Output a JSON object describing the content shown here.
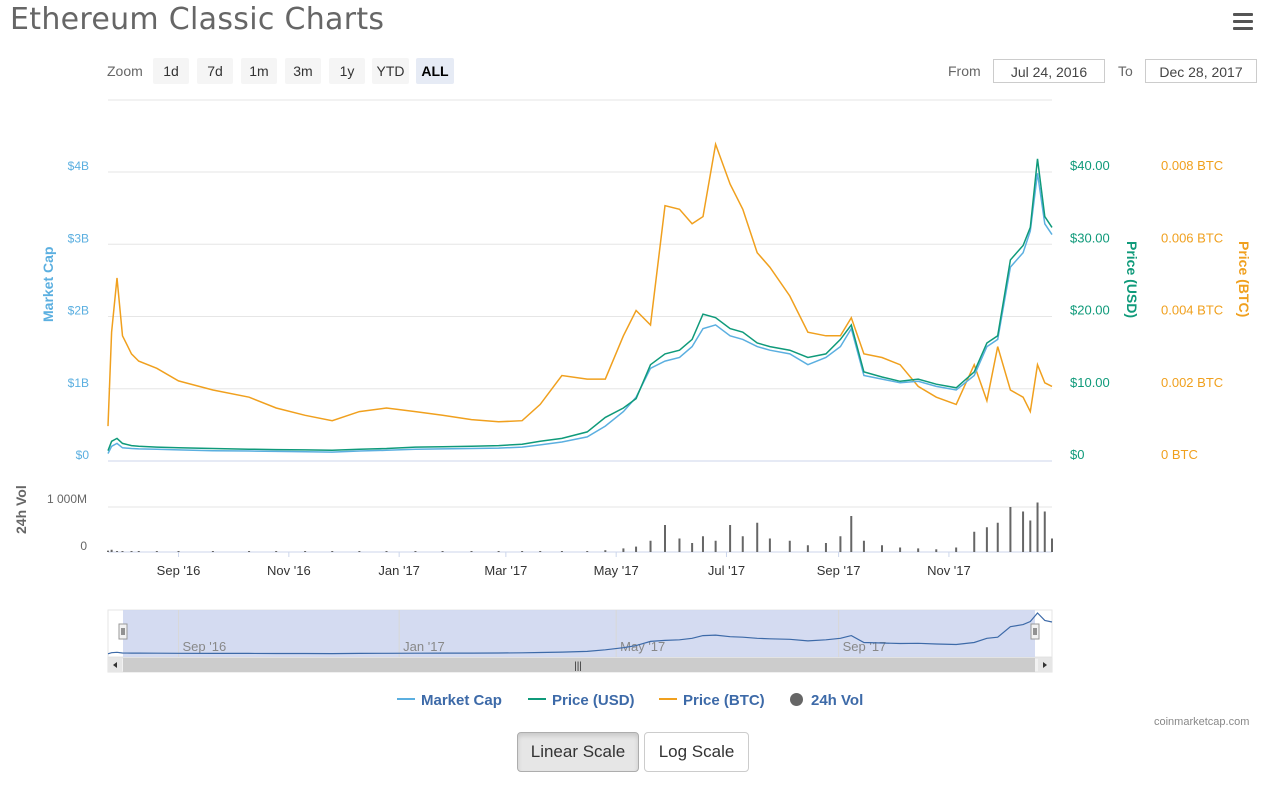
{
  "page": {
    "title": "Ethereum Classic Charts"
  },
  "toolbar": {
    "zoom_label": "Zoom",
    "zoom_buttons": [
      "1d",
      "7d",
      "1m",
      "3m",
      "1y",
      "YTD",
      "ALL"
    ],
    "active_zoom": "ALL",
    "from_label": "From",
    "from_value": "Jul 24, 2016",
    "to_label": "To",
    "to_value": "Dec 28, 2017"
  },
  "legend": {
    "market_cap": "Market Cap",
    "price_usd": "Price (USD)",
    "price_btc": "Price (BTC)",
    "volume": "24h Vol"
  },
  "credit": "coinmarketcap.com",
  "scale_buttons": {
    "linear": "Linear Scale",
    "log": "Log Scale",
    "active": "linear"
  },
  "colors": {
    "market_cap": "#5bafe0",
    "price_usd": "#0f9a7a",
    "price_btc": "#f0a01e",
    "volume": "#666666",
    "link": "#3d6aa8"
  },
  "chart_data": {
    "type": "line",
    "x_range": [
      "2016-07-24",
      "2017-12-28"
    ],
    "x_ticks": [
      "Sep '16",
      "Nov '16",
      "Jan '17",
      "Mar '17",
      "May '17",
      "Jul '17",
      "Sep '17",
      "Nov '17"
    ],
    "navigator_ticks": [
      "Sep '16",
      "Jan '17",
      "May '17",
      "Sep '17"
    ],
    "axes": {
      "market_cap": {
        "label": "Market Cap",
        "ticks": [
          "$0",
          "$1B",
          "$2B",
          "$3B",
          "$4B"
        ],
        "range": [
          0,
          4000000000
        ]
      },
      "price_usd": {
        "label": "Price (USD)",
        "ticks": [
          "$0",
          "$10.00",
          "$20.00",
          "$30.00",
          "$40.00"
        ],
        "range": [
          0,
          40
        ]
      },
      "price_btc": {
        "label": "Price (BTC)",
        "ticks": [
          "0 BTC",
          "0.002 BTC",
          "0.004 BTC",
          "0.006 BTC",
          "0.008 BTC"
        ],
        "range": [
          0,
          0.008
        ]
      },
      "volume": {
        "label": "24h Vol",
        "ticks": [
          "0",
          "1 000M"
        ],
        "range": [
          0,
          1000000000
        ]
      }
    },
    "x": [
      "2016-07-24",
      "2016-07-26",
      "2016-07-29",
      "2016-08-01",
      "2016-08-06",
      "2016-08-10",
      "2016-08-20",
      "2016-09-01",
      "2016-09-20",
      "2016-10-10",
      "2016-10-25",
      "2016-11-10",
      "2016-11-25",
      "2016-12-10",
      "2016-12-25",
      "2017-01-10",
      "2017-01-25",
      "2017-02-10",
      "2017-02-25",
      "2017-03-10",
      "2017-03-20",
      "2017-04-01",
      "2017-04-15",
      "2017-04-25",
      "2017-05-05",
      "2017-05-12",
      "2017-05-20",
      "2017-05-28",
      "2017-06-05",
      "2017-06-12",
      "2017-06-18",
      "2017-06-25",
      "2017-07-03",
      "2017-07-10",
      "2017-07-18",
      "2017-07-25",
      "2017-08-05",
      "2017-08-15",
      "2017-08-25",
      "2017-09-02",
      "2017-09-08",
      "2017-09-15",
      "2017-09-25",
      "2017-10-05",
      "2017-10-15",
      "2017-10-25",
      "2017-11-05",
      "2017-11-15",
      "2017-11-22",
      "2017-11-28",
      "2017-12-05",
      "2017-12-12",
      "2017-12-16",
      "2017-12-20",
      "2017-12-24",
      "2017-12-28"
    ],
    "series": [
      {
        "name": "Market Cap",
        "axis": "market_cap",
        "values": [
          20000000,
          120000000,
          160000000,
          100000000,
          90000000,
          85000000,
          80000000,
          70000000,
          60000000,
          55000000,
          50000000,
          45000000,
          40000000,
          55000000,
          65000000,
          80000000,
          85000000,
          90000000,
          95000000,
          110000000,
          140000000,
          180000000,
          250000000,
          400000000,
          600000000,
          800000000,
          1200000000,
          1300000000,
          1350000000,
          1500000000,
          1750000000,
          1800000000,
          1650000000,
          1600000000,
          1500000000,
          1450000000,
          1400000000,
          1250000000,
          1350000000,
          1500000000,
          1750000000,
          1100000000,
          1050000000,
          1000000000,
          1020000000,
          950000000,
          900000000,
          1100000000,
          1500000000,
          1600000000,
          2600000000,
          2800000000,
          3100000000,
          3900000000,
          3200000000,
          3050000000
        ]
      },
      {
        "name": "Price (USD)",
        "axis": "price_usd",
        "values": [
          0.6,
          1.9,
          2.3,
          1.6,
          1.3,
          1.2,
          1.1,
          1.0,
          0.9,
          0.8,
          0.75,
          0.7,
          0.65,
          0.8,
          0.9,
          1.1,
          1.15,
          1.2,
          1.3,
          1.5,
          1.9,
          2.3,
          3.2,
          5.2,
          6.5,
          7.8,
          12.5,
          14.0,
          14.5,
          16.0,
          19.5,
          19.0,
          17.5,
          17.0,
          15.5,
          15.0,
          14.5,
          13.5,
          14.0,
          16.0,
          18.0,
          11.5,
          10.8,
          10.2,
          10.5,
          9.8,
          9.3,
          11.5,
          15.5,
          16.5,
          27.0,
          29.0,
          31.5,
          41.0,
          33.0,
          31.5
        ]
      },
      {
        "name": "Price (BTC)",
        "axis": "price_btc",
        "values": [
          0.0008,
          0.0034,
          0.0049,
          0.0033,
          0.0028,
          0.0026,
          0.0024,
          0.00205,
          0.0018,
          0.0016,
          0.0013,
          0.0011,
          0.00095,
          0.0012,
          0.0013,
          0.0012,
          0.0011,
          0.00098,
          0.00092,
          0.00095,
          0.0014,
          0.0022,
          0.0021,
          0.0021,
          0.0033,
          0.004,
          0.0036,
          0.0069,
          0.0068,
          0.0064,
          0.0066,
          0.0086,
          0.0075,
          0.0068,
          0.0056,
          0.0052,
          0.0044,
          0.0034,
          0.0033,
          0.0033,
          0.0038,
          0.0028,
          0.0027,
          0.0025,
          0.0019,
          0.0016,
          0.0014,
          0.0025,
          0.0015,
          0.003,
          0.0018,
          0.0016,
          0.0012,
          0.0025,
          0.002,
          0.0019
        ]
      },
      {
        "name": "24h Vol",
        "axis": "volume",
        "values": [
          30000000,
          50000000,
          20000000,
          10000000,
          10000000,
          5000000,
          5000000,
          5000000,
          5000000,
          5000000,
          5000000,
          5000000,
          5000000,
          5000000,
          5000000,
          5000000,
          5000000,
          5000000,
          5000000,
          5000000,
          5000000,
          10000000,
          15000000,
          40000000,
          80000000,
          120000000,
          250000000,
          600000000,
          300000000,
          200000000,
          350000000,
          250000000,
          600000000,
          350000000,
          650000000,
          300000000,
          250000000,
          150000000,
          200000000,
          350000000,
          800000000,
          250000000,
          150000000,
          100000000,
          80000000,
          60000000,
          100000000,
          450000000,
          550000000,
          650000000,
          1000000000,
          900000000,
          700000000,
          1100000000,
          900000000,
          300000000
        ]
      }
    ],
    "grid": true,
    "legend_position": "bottom-center"
  }
}
